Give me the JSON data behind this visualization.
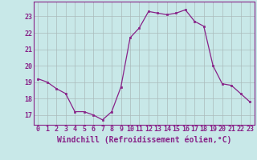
{
  "x": [
    0,
    1,
    2,
    3,
    4,
    5,
    6,
    7,
    8,
    9,
    10,
    11,
    12,
    13,
    14,
    15,
    16,
    17,
    18,
    19,
    20,
    21,
    22,
    23
  ],
  "y": [
    19.2,
    19.0,
    18.6,
    18.3,
    17.2,
    17.2,
    17.0,
    16.7,
    17.2,
    18.7,
    21.7,
    22.3,
    23.3,
    23.2,
    23.1,
    23.2,
    23.4,
    22.7,
    22.4,
    20.0,
    18.9,
    18.8,
    18.3,
    17.8
  ],
  "line_color": "#882288",
  "marker_color": "#882288",
  "bg_color": "#c8e8e8",
  "grid_color": "#aabbbb",
  "xlabel": "Windchill (Refroidissement éolien,°C)",
  "xlim": [
    -0.5,
    23.5
  ],
  "ylim": [
    16.4,
    23.9
  ],
  "yticks": [
    17,
    18,
    19,
    20,
    21,
    22,
    23
  ],
  "xticks": [
    0,
    1,
    2,
    3,
    4,
    5,
    6,
    7,
    8,
    9,
    10,
    11,
    12,
    13,
    14,
    15,
    16,
    17,
    18,
    19,
    20,
    21,
    22,
    23
  ],
  "tick_fontsize": 6.0,
  "xlabel_fontsize": 7.0
}
